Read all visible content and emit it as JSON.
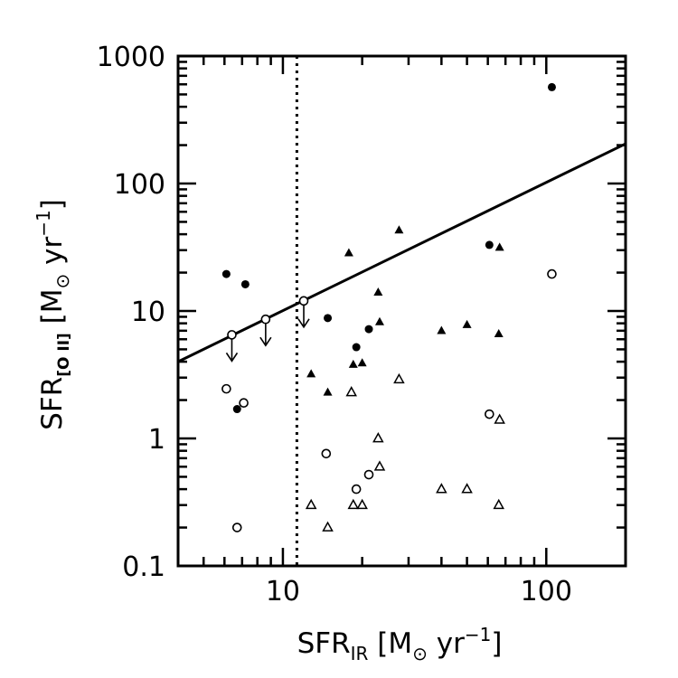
{
  "chart_data": {
    "type": "scatter",
    "x_scale": "log",
    "y_scale": "log",
    "xlim": [
      4,
      200
    ],
    "ylim": [
      0.1,
      1000
    ],
    "xlabel": {
      "main": "SFR",
      "sub": "IR",
      "unit_open": " [M",
      "unit_sym": "⊙",
      "unit_mid": " yr",
      "unit_sup": "−1",
      "unit_close": "]"
    },
    "ylabel": {
      "main": "SFR",
      "sub": "[O II]",
      "unit_open": " [M",
      "unit_sym": "⊙",
      "unit_mid": " yr",
      "unit_sup": "−1",
      "unit_close": "]"
    },
    "x_ticks": [
      10,
      100
    ],
    "x_tick_labels": [
      "10",
      "100"
    ],
    "y_ticks": [
      0.1,
      1,
      10,
      100,
      1000
    ],
    "y_tick_labels": [
      "0.1",
      "1",
      "10",
      "100",
      "1000"
    ],
    "vertical_reference_x": 11.3,
    "fit_line": {
      "x": [
        4,
        200
      ],
      "y": [
        4.0,
        205
      ]
    },
    "series": [
      {
        "marker": "filled-circle",
        "points": [
          [
            6.1,
            19.5
          ],
          [
            7.2,
            16.2
          ],
          [
            6.7,
            1.7
          ],
          [
            14.8,
            8.8
          ],
          [
            19.0,
            5.2
          ],
          [
            21.2,
            7.2
          ],
          [
            60.8,
            33.0
          ],
          [
            105.0,
            570.0
          ]
        ]
      },
      {
        "marker": "open-circle",
        "points": [
          [
            6.1,
            2.45
          ],
          [
            7.1,
            1.9
          ],
          [
            6.7,
            0.2
          ],
          [
            14.6,
            0.76
          ],
          [
            19.0,
            0.4
          ],
          [
            21.2,
            0.52
          ],
          [
            60.8,
            1.55
          ],
          [
            105.0,
            19.5
          ]
        ]
      },
      {
        "marker": "open-circle-upper-limit",
        "points": [
          [
            6.4,
            6.5
          ],
          [
            8.6,
            8.6
          ],
          [
            12.0,
            12.0
          ]
        ]
      },
      {
        "marker": "filled-triangle",
        "points": [
          [
            12.8,
            3.2
          ],
          [
            14.8,
            2.3
          ],
          [
            17.8,
            28.5
          ],
          [
            18.5,
            3.8
          ],
          [
            20.0,
            3.9
          ],
          [
            23.0,
            14.0
          ],
          [
            23.3,
            8.2
          ],
          [
            27.6,
            43.0
          ],
          [
            40.0,
            7.0
          ],
          [
            50.0,
            7.8
          ],
          [
            66.5,
            31.5
          ],
          [
            66.0,
            6.6
          ]
        ]
      },
      {
        "marker": "open-triangle",
        "points": [
          [
            12.8,
            0.3
          ],
          [
            14.8,
            0.2
          ],
          [
            18.2,
            2.3
          ],
          [
            18.5,
            0.3
          ],
          [
            20.0,
            0.3
          ],
          [
            23.0,
            1.0
          ],
          [
            23.3,
            0.6
          ],
          [
            27.6,
            2.9
          ],
          [
            40.0,
            0.4
          ],
          [
            50.0,
            0.4
          ],
          [
            66.5,
            1.4
          ],
          [
            66.0,
            0.3
          ]
        ]
      }
    ]
  }
}
